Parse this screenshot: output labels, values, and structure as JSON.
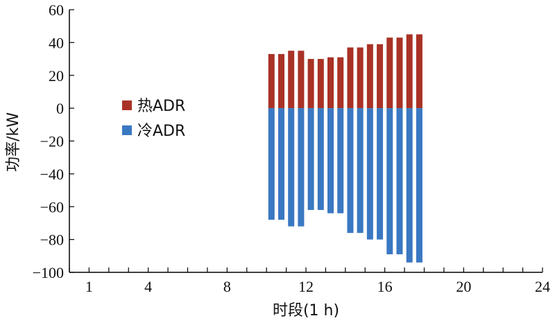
{
  "chart_data": {
    "type": "bar",
    "stacked": true,
    "xlabel": "时段(1 h)",
    "ylabel": "功率/kW",
    "ylim": [
      -100,
      60
    ],
    "xlim": [
      0,
      24
    ],
    "yticks": [
      -100,
      -80,
      -60,
      -40,
      -20,
      0,
      20,
      40,
      60
    ],
    "xticks": [
      1,
      4,
      8,
      12,
      16,
      20,
      24
    ],
    "legend_position": "left",
    "x": [
      10.25,
      10.75,
      11.25,
      11.75,
      12.25,
      12.75,
      13.25,
      13.75,
      14.25,
      14.75,
      15.25,
      15.75,
      16.25,
      16.75,
      17.25,
      17.75
    ],
    "series": [
      {
        "name": "热ADR",
        "color": "#a93226",
        "values": [
          33,
          33,
          35,
          35,
          30,
          30,
          31,
          31,
          37,
          37,
          39,
          39,
          43,
          43,
          45,
          45
        ]
      },
      {
        "name": "冷ADR",
        "color": "#3a78c2",
        "values": [
          -68,
          -68,
          -72,
          -72,
          -62,
          -62,
          -64,
          -64,
          -76,
          -76,
          -80,
          -80,
          -89,
          -89,
          -94,
          -94
        ]
      }
    ]
  }
}
